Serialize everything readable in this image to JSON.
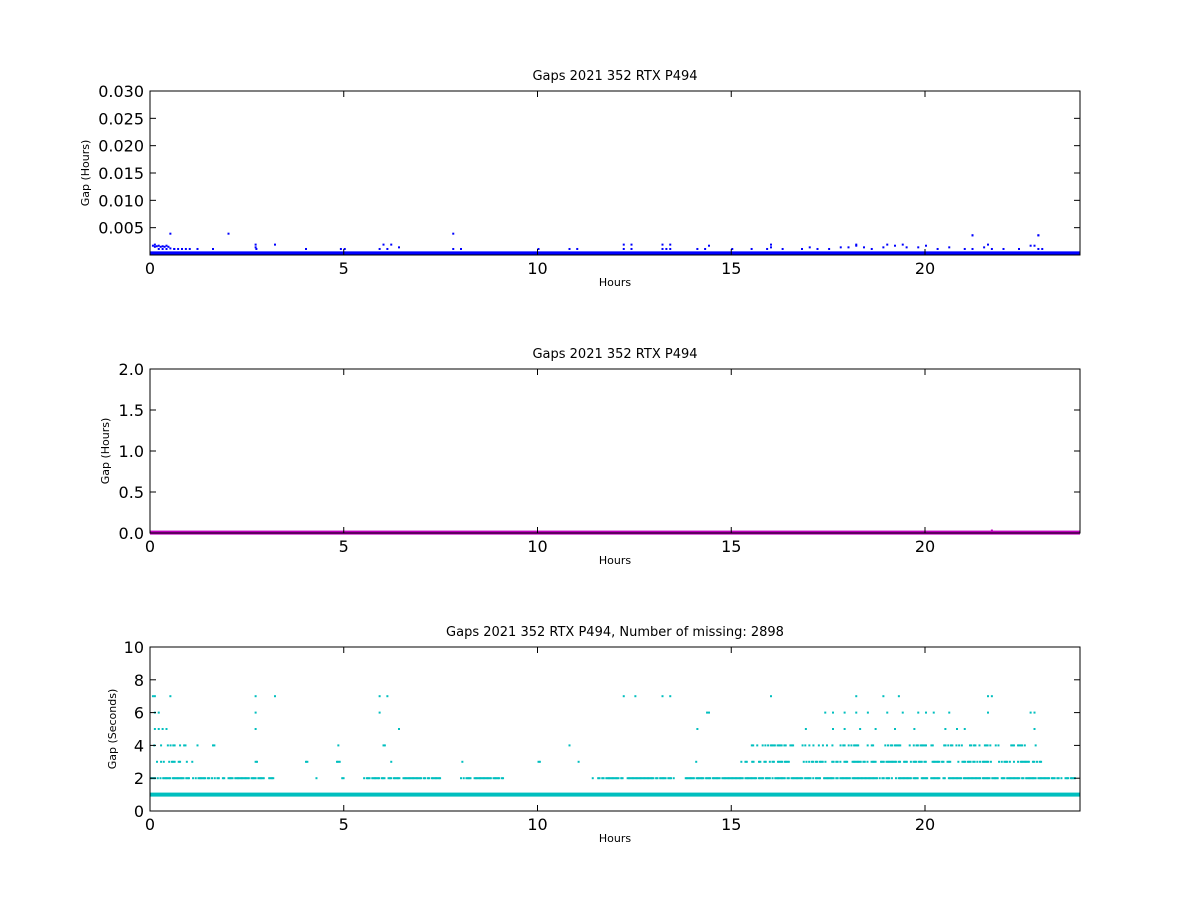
{
  "chart_data": [
    {
      "type": "scatter",
      "title": "Gaps 2021 352 RTX  P494",
      "xlabel": "Hours",
      "ylabel": "Gap (Hours)",
      "xlim": [
        0,
        24
      ],
      "ylim": [
        0,
        0.03
      ],
      "x_ticks": [
        "0",
        "5",
        "10",
        "15",
        "20"
      ],
      "y_ticks": [
        "0.005",
        "0.010",
        "0.015",
        "0.020",
        "0.025",
        "0.030"
      ],
      "grid": false,
      "color": "#0000ff",
      "series": [
        {
          "x": [
            0.05,
            0.1,
            0.15,
            0.2,
            0.25,
            0.3,
            0.35,
            0.4,
            0.45,
            0.5,
            0.6,
            0.7,
            0.8,
            0.9,
            1.0,
            1.2,
            1.6,
            2.7,
            2.72,
            4.0,
            4.9,
            5.0,
            5.9,
            6.1,
            6.4,
            7.8,
            8.0,
            10.0,
            10.8,
            11.0,
            12.2,
            12.4,
            13.2,
            13.3,
            13.4,
            14.1,
            14.3,
            15.0,
            15.5,
            15.9,
            16.0,
            16.3,
            16.8,
            17.0,
            17.2,
            17.5,
            17.8,
            18.0,
            18.2,
            18.4,
            18.6,
            18.9,
            19.2,
            19.5,
            19.8,
            20.0,
            20.3,
            20.6,
            21.0,
            21.2,
            21.5,
            21.7,
            22.0,
            22.4,
            22.7,
            22.9,
            23.0,
            0.5,
            2.0,
            2.7,
            3.2,
            6.0,
            6.2,
            7.8,
            12.2,
            12.4,
            13.2,
            13.4,
            14.4,
            16.0,
            18.2,
            19.0,
            19.4,
            21.2,
            21.6,
            22.8,
            22.9,
            21.2,
            22.9,
            0.1,
            0.2,
            0.3,
            0.4,
            0.6
          ],
          "y": [
            0.0017,
            0.0015,
            0.0016,
            0.0017,
            0.0015,
            0.0016,
            0.0015,
            0.0017,
            0.0015,
            0.0012,
            0.0011,
            0.0011,
            0.0011,
            0.0011,
            0.0011,
            0.0011,
            0.0011,
            0.0014,
            0.0011,
            0.0011,
            0.0011,
            0.0011,
            0.0011,
            0.0011,
            0.0014,
            0.0011,
            0.0011,
            0.0011,
            0.0011,
            0.0011,
            0.0011,
            0.0011,
            0.0011,
            0.0011,
            0.0011,
            0.0011,
            0.0011,
            0.0011,
            0.0011,
            0.0011,
            0.0014,
            0.0011,
            0.0011,
            0.0014,
            0.0011,
            0.0011,
            0.0014,
            0.0014,
            0.0017,
            0.0014,
            0.0011,
            0.0014,
            0.0017,
            0.0014,
            0.0014,
            0.0017,
            0.0011,
            0.0014,
            0.0011,
            0.0011,
            0.0014,
            0.0011,
            0.0011,
            0.0011,
            0.0017,
            0.0011,
            0.0011,
            0.0039,
            0.0039,
            0.0019,
            0.0019,
            0.0019,
            0.0019,
            0.0039,
            0.0019,
            0.0019,
            0.0019,
            0.0019,
            0.0017,
            0.0019,
            0.0019,
            0.0019,
            0.0019,
            0.0036,
            0.0019,
            0.0017,
            0.0036,
            0.0036,
            0.0036,
            0.0019,
            0.0011,
            0.0011,
            0.0011,
            0.0011
          ],
          "baseline_y": 0.0003
        }
      ]
    },
    {
      "type": "scatter",
      "title": "Gaps 2021 352 RTX  P494",
      "xlabel": "Hours",
      "ylabel": "Gap (Hours)",
      "xlim": [
        0,
        24
      ],
      "ylim": [
        0,
        2.0
      ],
      "x_ticks": [
        "0",
        "5",
        "10",
        "15",
        "20"
      ],
      "y_ticks": [
        "0.0",
        "0.5",
        "1.0",
        "1.5",
        "2.0"
      ],
      "grid": false,
      "color": "#bf00bf",
      "series": [
        {
          "x": [
            21.7
          ],
          "y": [
            0.03
          ],
          "baseline_y": 0.005
        }
      ]
    },
    {
      "type": "scatter",
      "title": "Gaps 2021 352 RTX  P494, Number of missing: 2898",
      "xlabel": "Hours",
      "ylabel": "Gap (Seconds)",
      "xlim": [
        0,
        24
      ],
      "ylim": [
        0,
        10
      ],
      "x_ticks": [
        "0",
        "5",
        "10",
        "15",
        "20"
      ],
      "y_ticks": [
        "0",
        "2",
        "4",
        "6",
        "8",
        "10"
      ],
      "grid": false,
      "color": "#00bfbf",
      "series": [
        {
          "x": [
            0.05,
            0.1,
            0.5,
            2.7,
            3.2,
            5.9,
            6.1,
            12.2,
            12.5,
            13.2,
            13.4,
            16.0,
            18.2,
            18.9,
            19.3,
            21.6,
            21.7,
            0.1,
            0.2,
            2.7,
            5.9,
            14.4,
            14.35,
            17.4,
            17.6,
            17.9,
            18.2,
            18.5,
            19.0,
            19.4,
            19.8,
            20.0,
            20.2,
            20.6,
            21.6,
            22.7,
            22.8,
            0.1,
            0.2,
            0.3,
            0.4,
            2.7,
            6.4,
            14.1,
            16.9,
            17.6,
            17.9,
            18.3,
            18.7,
            19.2,
            19.7,
            20.5,
            20.8,
            21.0,
            22.8
          ],
          "y": [
            7,
            7,
            7,
            7,
            7,
            7,
            7,
            7,
            7,
            7,
            7,
            7,
            7,
            7,
            7,
            7,
            7,
            6,
            6,
            6,
            6,
            6,
            6,
            6,
            6,
            6,
            6,
            6,
            6,
            6,
            6,
            6,
            6,
            6,
            6,
            6,
            6,
            5,
            5,
            5,
            5,
            5,
            5,
            5,
            5,
            5,
            5,
            5,
            5,
            5,
            5,
            5,
            5,
            5,
            5
          ]
        }
      ],
      "dense_bands": [
        {
          "y": 4,
          "ranges": [
            [
              0.05,
              0.9
            ],
            [
              1.2,
              1.3
            ],
            [
              1.6,
              1.65
            ],
            [
              4.8,
              4.85
            ],
            [
              6.0,
              6.05
            ],
            [
              10.8,
              10.85
            ],
            [
              15.4,
              16.4
            ],
            [
              16.5,
              18.5
            ],
            [
              18.6,
              20.2
            ],
            [
              20.4,
              21.9
            ],
            [
              22.2,
              22.9
            ]
          ],
          "density": 0.45
        },
        {
          "y": 3,
          "ranges": [
            [
              0.05,
              1.1
            ],
            [
              2.7,
              2.75
            ],
            [
              4.0,
              4.05
            ],
            [
              4.8,
              4.9
            ],
            [
              6.2,
              6.25
            ],
            [
              8.0,
              8.05
            ],
            [
              10.0,
              10.05
            ],
            [
              11.0,
              11.05
            ],
            [
              14.0,
              14.1
            ],
            [
              15.2,
              23.0
            ]
          ],
          "density": 0.55
        },
        {
          "y": 2,
          "ranges": [
            [
              0.0,
              1.9
            ],
            [
              2.0,
              3.2
            ],
            [
              4.2,
              4.3
            ],
            [
              4.9,
              5.0
            ],
            [
              5.5,
              7.5
            ],
            [
              8.0,
              9.1
            ],
            [
              11.4,
              12.2
            ],
            [
              12.3,
              13.5
            ],
            [
              13.8,
              23.9
            ]
          ],
          "density": 0.8
        },
        {
          "y": 1,
          "ranges": [
            [
              0.0,
              24.0
            ]
          ],
          "density": 1.0
        }
      ]
    }
  ]
}
